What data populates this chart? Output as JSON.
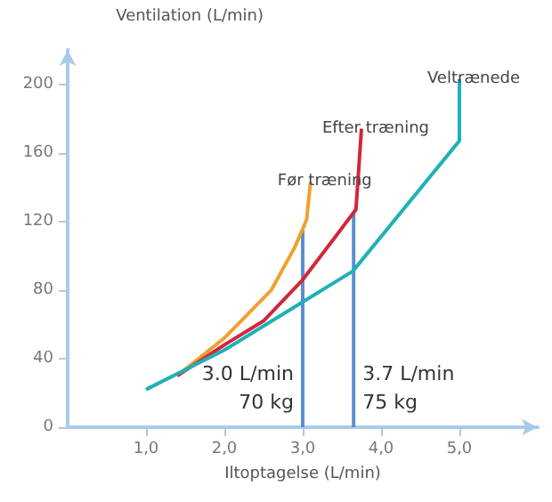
{
  "chart_data": {
    "type": "line",
    "xlabel": "Iltoptagelse (L/min)",
    "ylabel": "Ventilation (L/min)",
    "xlim": [
      0,
      6
    ],
    "xticks": [
      {
        "value": 1,
        "label": "1,0"
      },
      {
        "value": 2,
        "label": "2,0"
      },
      {
        "value": 3,
        "label": "3,0"
      },
      {
        "value": 4,
        "label": "4,0"
      },
      {
        "value": 5,
        "label": "5,0"
      }
    ],
    "ylim": [
      0,
      220
    ],
    "yticks": [
      0,
      40,
      80,
      120,
      160,
      200
    ],
    "grid": false,
    "legend": false,
    "marker": "none",
    "line_style": "solid",
    "series": [
      {
        "name": "Før træning",
        "color": "#f0a030",
        "x": [
          1.4,
          2.0,
          2.6,
          2.9,
          3.05,
          3.1
        ],
        "values": [
          30,
          52,
          80,
          105,
          121,
          143
        ]
      },
      {
        "name": "Efter træning",
        "color": "#d0283a",
        "x": [
          1.4,
          2.0,
          2.5,
          3.0,
          3.4,
          3.68,
          3.75
        ],
        "values": [
          30,
          48,
          62,
          86,
          110,
          127,
          174
        ]
      },
      {
        "name": "Veltrænede",
        "color": "#20b0b8",
        "x": [
          1.0,
          2.0,
          3.0,
          3.64,
          5.0,
          5.0
        ],
        "values": [
          22,
          45,
          73,
          91,
          167,
          203
        ]
      },
      {
        "color": "#5b8fd0",
        "x": [
          3.0,
          3.0
        ],
        "values": [
          115,
          0
        ]
      },
      {
        "color": "#5b8fd0",
        "x": [
          3.65,
          3.65
        ],
        "values": [
          125,
          0
        ]
      }
    ],
    "annotations": [
      "3.0 L/min\n70 kg",
      "3.7 L/min\n75 kg"
    ]
  }
}
